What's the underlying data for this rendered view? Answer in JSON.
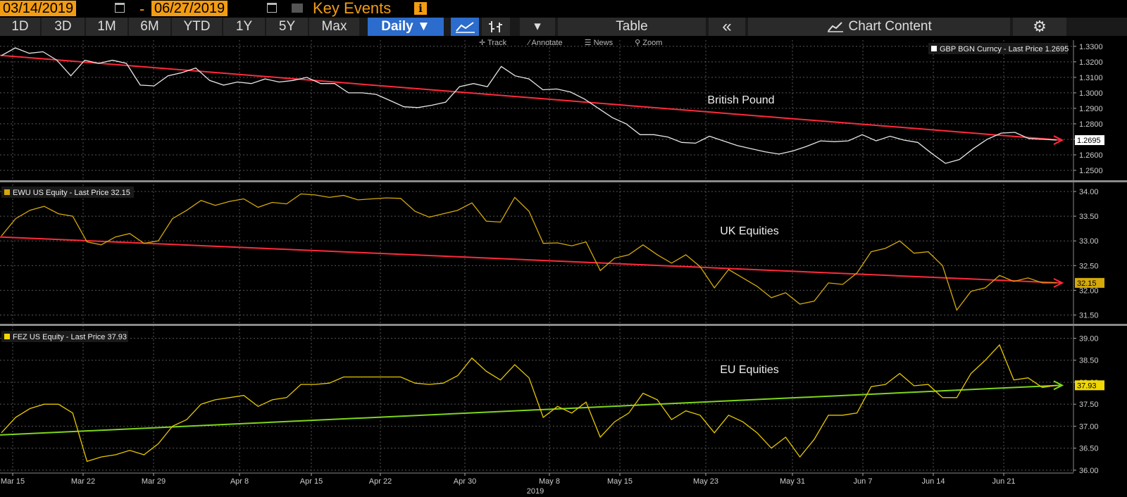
{
  "header": {
    "start_date": "03/14/2019",
    "end_date": "06/27/2019",
    "dash": "-",
    "key_events": "Key Events",
    "info": "i"
  },
  "toolbar": {
    "ranges": [
      "1D",
      "3D",
      "1M",
      "6M",
      "YTD",
      "1Y",
      "5Y",
      "Max"
    ],
    "frequency": "Daily ▼",
    "table": "Table",
    "collapse": "«",
    "chart_content": "Chart Content",
    "settings": "⚙",
    "dropdown": "▾"
  },
  "subtools": [
    "Track",
    "Annotate",
    "News",
    "Zoom"
  ],
  "colors": {
    "gbp_line": "#e6e6e6",
    "ewu_line": "#d4a90a",
    "fez_line": "#e6c800",
    "trend_red": "#ff2a3c",
    "trend_green": "#7fd61a",
    "accent": "#f39c12"
  },
  "chart_data": [
    {
      "type": "line",
      "legend": "GBP BGN Curncy - Last Price 1.2695",
      "annotation": "British Pound",
      "last_value_label": "1.2695",
      "ylim": [
        1.245,
        1.334
      ],
      "yticks": [
        "1.3300",
        "1.3200",
        "1.3100",
        "1.3000",
        "1.2900",
        "1.2800",
        "1.2700",
        "1.2600",
        "1.2500"
      ],
      "ytick_values": [
        1.33,
        1.32,
        1.31,
        1.3,
        1.29,
        1.28,
        1.27,
        1.26,
        1.25
      ],
      "values": [
        1.324,
        1.329,
        1.3255,
        1.3265,
        1.321,
        1.311,
        1.321,
        1.319,
        1.321,
        1.319,
        1.305,
        1.3045,
        1.311,
        1.313,
        1.316,
        1.308,
        1.305,
        1.307,
        1.306,
        1.309,
        1.307,
        1.308,
        1.31,
        1.306,
        1.306,
        1.3,
        1.3,
        1.299,
        1.295,
        1.291,
        1.2905,
        1.292,
        1.294,
        1.304,
        1.306,
        1.304,
        1.317,
        1.311,
        1.309,
        1.302,
        1.3025,
        1.3005,
        1.296,
        1.29,
        1.284,
        1.28,
        1.273,
        1.273,
        1.2715,
        1.268,
        1.2675,
        1.272,
        1.269,
        1.266,
        1.264,
        1.262,
        1.2605,
        1.2625,
        1.2655,
        1.269,
        1.2685,
        1.269,
        1.273,
        1.269,
        1.272,
        1.2695,
        1.268,
        1.261,
        1.2545,
        1.257,
        1.264,
        1.27,
        1.274,
        1.2745,
        1.2705,
        1.27,
        1.2695
      ],
      "trend": {
        "start": 1.3242,
        "end": 1.2695,
        "color": "#ff2a3c"
      }
    },
    {
      "type": "line",
      "legend": "EWU US Equity - Last Price 32.15",
      "annotation": "UK Equities",
      "last_value_label": "32.15",
      "ylim": [
        31.35,
        34.1
      ],
      "yticks": [
        "34.00",
        "33.50",
        "33.00",
        "32.50",
        "32.00",
        "31.50"
      ],
      "ytick_values": [
        34.0,
        33.5,
        33.0,
        32.5,
        32.0,
        31.5
      ],
      "values": [
        33.1,
        33.45,
        33.62,
        33.7,
        33.55,
        33.5,
        32.98,
        32.92,
        33.08,
        33.15,
        32.95,
        33.0,
        33.45,
        33.62,
        33.82,
        33.72,
        33.8,
        33.85,
        33.68,
        33.78,
        33.75,
        33.95,
        33.93,
        33.88,
        33.92,
        33.83,
        33.85,
        33.87,
        33.86,
        33.6,
        33.48,
        33.55,
        33.62,
        33.77,
        33.4,
        33.38,
        33.88,
        33.6,
        32.95,
        32.96,
        32.9,
        32.98,
        32.4,
        32.65,
        32.72,
        32.92,
        32.72,
        32.55,
        32.72,
        32.48,
        32.05,
        32.42,
        32.25,
        32.08,
        31.85,
        31.95,
        31.72,
        31.78,
        32.15,
        32.12,
        32.35,
        32.78,
        32.85,
        33.0,
        32.75,
        32.78,
        32.5,
        31.6,
        31.98,
        32.05,
        32.3,
        32.18,
        32.25,
        32.15,
        32.15
      ],
      "trend": {
        "start": 33.08,
        "end": 32.15,
        "color": "#ff2a3c"
      }
    },
    {
      "type": "line",
      "legend": "FEZ US Equity - Last Price 37.93",
      "annotation": "EU Equities",
      "last_value_label": "37.93",
      "ylim": [
        35.95,
        39.2
      ],
      "yticks": [
        "39.00",
        "38.50",
        "38.00",
        "37.50",
        "37.00",
        "36.50",
        "36.00"
      ],
      "ytick_values": [
        39.0,
        38.5,
        38.0,
        37.5,
        37.0,
        36.5,
        36.0
      ],
      "values": [
        36.85,
        37.2,
        37.4,
        37.5,
        37.5,
        37.3,
        36.2,
        36.3,
        36.35,
        36.45,
        36.35,
        36.6,
        37.0,
        37.15,
        37.5,
        37.6,
        37.65,
        37.7,
        37.45,
        37.6,
        37.65,
        37.95,
        37.95,
        37.98,
        38.12,
        38.12,
        38.12,
        38.12,
        38.12,
        37.98,
        37.95,
        37.98,
        38.15,
        38.55,
        38.25,
        38.05,
        38.4,
        38.1,
        37.2,
        37.45,
        37.3,
        37.55,
        36.75,
        37.1,
        37.3,
        37.75,
        37.6,
        37.15,
        37.35,
        37.25,
        36.85,
        37.25,
        37.1,
        36.85,
        36.5,
        36.75,
        36.3,
        36.7,
        37.25,
        37.25,
        37.3,
        37.9,
        37.95,
        38.2,
        37.92,
        37.95,
        37.65,
        37.65,
        38.2,
        38.5,
        38.85,
        38.05,
        38.1,
        37.88,
        37.93
      ],
      "trend": {
        "start": 36.8,
        "end": 37.93,
        "color": "#7fd61a"
      }
    }
  ],
  "x_axis": {
    "labels": [
      "Mar 15",
      "Mar 22",
      "Mar 29",
      "Apr 8",
      "Apr 15",
      "Apr 22",
      "Apr 30",
      "May 8",
      "May 15",
      "May 23",
      "May 31",
      "Jun 7",
      "Jun 14",
      "Jun 21"
    ],
    "year": "2019"
  }
}
